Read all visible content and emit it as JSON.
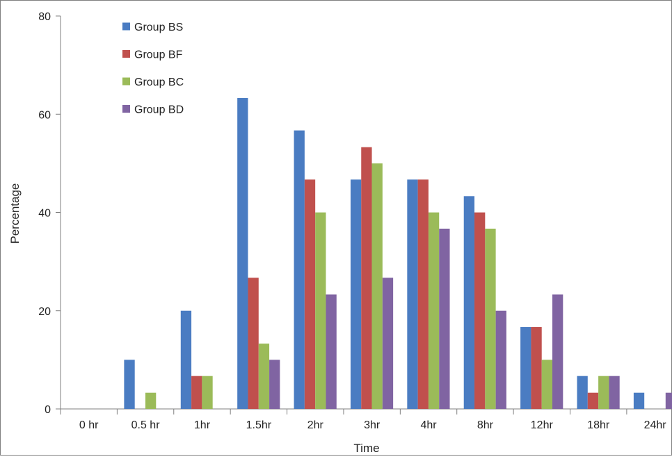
{
  "chart_data": {
    "type": "bar",
    "title": "",
    "xlabel": "Time",
    "ylabel": "Percentage",
    "ylim": [
      0,
      80
    ],
    "yticks": [
      0,
      20,
      40,
      60,
      80
    ],
    "grid": false,
    "legend_position": "top-left",
    "categories": [
      "0 hr",
      "0.5 hr",
      "1hr",
      "1.5hr",
      "2hr",
      "3hr",
      "4hr",
      "8hr",
      "12hr",
      "18hr",
      "24hr"
    ],
    "series": [
      {
        "name": "Group BS",
        "color": "#4a7cc2",
        "values": [
          0,
          10,
          20,
          63.3,
          56.7,
          46.7,
          46.7,
          43.3,
          16.7,
          6.7,
          3.3
        ]
      },
      {
        "name": "Group BF",
        "color": "#c0504d",
        "values": [
          0,
          0,
          6.7,
          26.7,
          46.7,
          53.3,
          46.7,
          40,
          16.7,
          3.3,
          0
        ]
      },
      {
        "name": "Group BC",
        "color": "#9bbb59",
        "values": [
          0,
          3.3,
          6.7,
          13.3,
          40,
          50,
          40,
          36.7,
          10,
          6.7,
          0
        ]
      },
      {
        "name": "Group BD",
        "color": "#8064a2",
        "values": [
          0,
          0,
          0,
          10,
          23.3,
          26.7,
          36.7,
          20,
          23.3,
          6.7,
          3.3
        ]
      }
    ]
  }
}
